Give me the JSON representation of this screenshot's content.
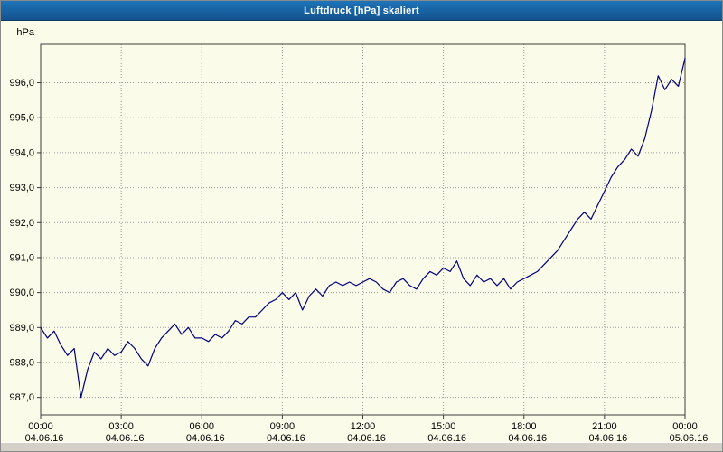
{
  "window": {
    "title": "Luftdruck [hPa] skaliert"
  },
  "colors": {
    "titlebar_bg": "#14538e",
    "titlebar_text": "#ffffff",
    "chart_bg": "#fbfbea",
    "plot_border": "#3c3c3c",
    "grid": "#9a9a9a",
    "line": "#000080",
    "axis_text": "#000000",
    "footer_bg": "#d4d0c8"
  },
  "chart_data": {
    "type": "line",
    "title": "Luftdruck [hPa] skaliert",
    "ylabel": "hPa",
    "grid": true,
    "legend": "none",
    "ylim": [
      986.5,
      997.1
    ],
    "yticks": [
      987,
      988,
      989,
      990,
      991,
      992,
      993,
      994,
      995,
      996
    ],
    "ytick_labels": [
      "987,0",
      "988,0",
      "989,0",
      "990,0",
      "991,0",
      "992,0",
      "993,0",
      "994,0",
      "995,0",
      "996,0"
    ],
    "x_hours_span": 24,
    "xticks": [
      {
        "hour": 0,
        "time": "00:00",
        "date": "04.06.16"
      },
      {
        "hour": 3,
        "time": "03:00",
        "date": "04.06.16"
      },
      {
        "hour": 6,
        "time": "06:00",
        "date": "04.06.16"
      },
      {
        "hour": 9,
        "time": "09:00",
        "date": "04.06.16"
      },
      {
        "hour": 12,
        "time": "12:00",
        "date": "04.06.16"
      },
      {
        "hour": 15,
        "time": "15:00",
        "date": "04.06.16"
      },
      {
        "hour": 18,
        "time": "18:00",
        "date": "04.06.16"
      },
      {
        "hour": 21,
        "time": "21:00",
        "date": "04.06.16"
      },
      {
        "hour": 24,
        "time": "00:00",
        "date": "05.06.16"
      }
    ],
    "series": [
      {
        "name": "Luftdruck",
        "start_hour": 0,
        "interval_minutes": 15,
        "values": [
          989.0,
          988.7,
          988.9,
          988.5,
          988.2,
          988.4,
          987.0,
          987.8,
          988.3,
          988.1,
          988.4,
          988.2,
          988.3,
          988.6,
          988.4,
          988.1,
          987.9,
          988.4,
          988.7,
          988.9,
          989.1,
          988.8,
          989.0,
          988.7,
          988.7,
          988.6,
          988.8,
          988.7,
          988.9,
          989.2,
          989.1,
          989.3,
          989.3,
          989.5,
          989.7,
          989.8,
          990.0,
          989.8,
          990.0,
          989.5,
          989.9,
          990.1,
          989.9,
          990.2,
          990.3,
          990.2,
          990.3,
          990.2,
          990.3,
          990.4,
          990.3,
          990.1,
          990.0,
          990.3,
          990.4,
          990.2,
          990.1,
          990.4,
          990.6,
          990.5,
          990.7,
          990.6,
          990.9,
          990.4,
          990.2,
          990.5,
          990.3,
          990.4,
          990.2,
          990.4,
          990.1,
          990.3,
          990.4,
          990.5,
          990.6,
          990.8,
          991.0,
          991.2,
          991.5,
          991.8,
          992.1,
          992.3,
          992.1,
          992.5,
          992.9,
          993.3,
          993.6,
          993.8,
          994.1,
          993.9,
          994.4,
          995.2,
          996.2,
          995.8,
          996.1,
          995.9,
          996.7
        ]
      }
    ]
  }
}
